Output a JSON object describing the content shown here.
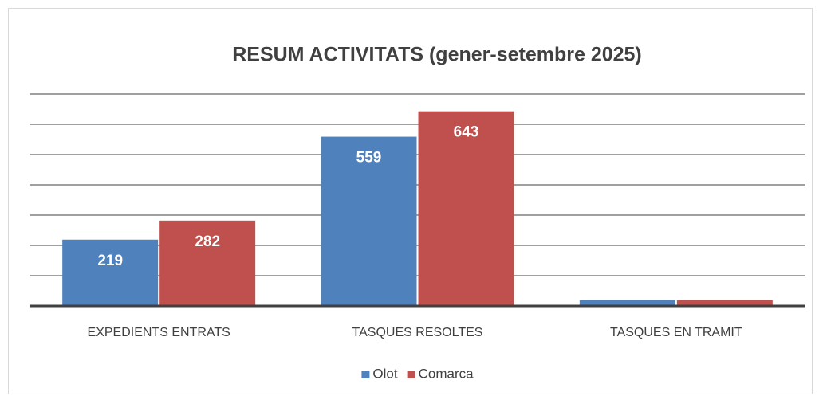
{
  "chart_data": {
    "type": "bar",
    "title": "RESUM ACTIVITATS (gener-setembre 2025)",
    "categories": [
      "EXPEDIENTS ENTRATS",
      "TASQUES RESOLTES",
      "TASQUES EN TRAMIT"
    ],
    "series": [
      {
        "name": "Olot",
        "color": "#4f81bd",
        "values": [
          219,
          559,
          20
        ]
      },
      {
        "name": "Comarca",
        "color": "#c0504d",
        "values": [
          282,
          643,
          20
        ]
      }
    ],
    "ylim": [
      0,
      700
    ],
    "yticks": [
      0,
      100,
      200,
      300,
      400,
      500,
      600,
      700
    ],
    "grid": true,
    "legend": "bottom"
  }
}
